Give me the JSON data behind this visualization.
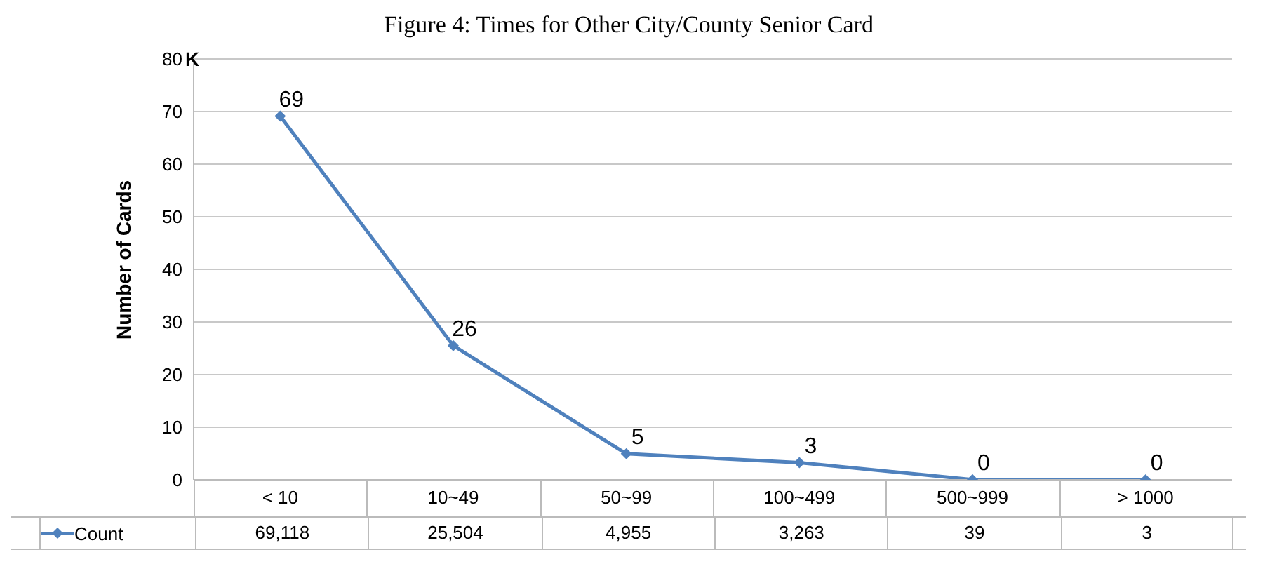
{
  "chart_data": {
    "type": "line",
    "title": "Figure 4: Times for Other City/County Senior Card",
    "ylabel": "Number of Cards",
    "categories": [
      "< 10",
      "10~49",
      "50~99",
      "100~499",
      "500~999",
      "> 1000"
    ],
    "series": [
      {
        "name": "Count",
        "color": "#4f81bd",
        "values": [
          69.118,
          25.504,
          4.955,
          3.263,
          0.039,
          0.003
        ]
      }
    ],
    "ylim": [
      0,
      80
    ],
    "yticks": [
      0,
      10,
      20,
      30,
      40,
      50,
      60,
      70,
      80
    ],
    "grid": "y",
    "legend": "bottom",
    "marker": "diamond",
    "line_style": "solid",
    "annotations": [
      "K",
      {
        "text": "69",
        "x": "< 10",
        "y": 69.118
      },
      {
        "text": "26",
        "x": "10~49",
        "y": 25.504
      },
      {
        "text": "5",
        "x": "50~99",
        "y": 4.955
      },
      {
        "text": "3",
        "x": "100~499",
        "y": 3.263
      },
      {
        "text": "0",
        "x": "500~999",
        "y": 0.039
      },
      {
        "text": "0",
        "x": "> 1000",
        "y": 0.003
      },
      "69,118",
      "25,504",
      "4,955",
      "3,263",
      "39",
      "3"
    ]
  }
}
